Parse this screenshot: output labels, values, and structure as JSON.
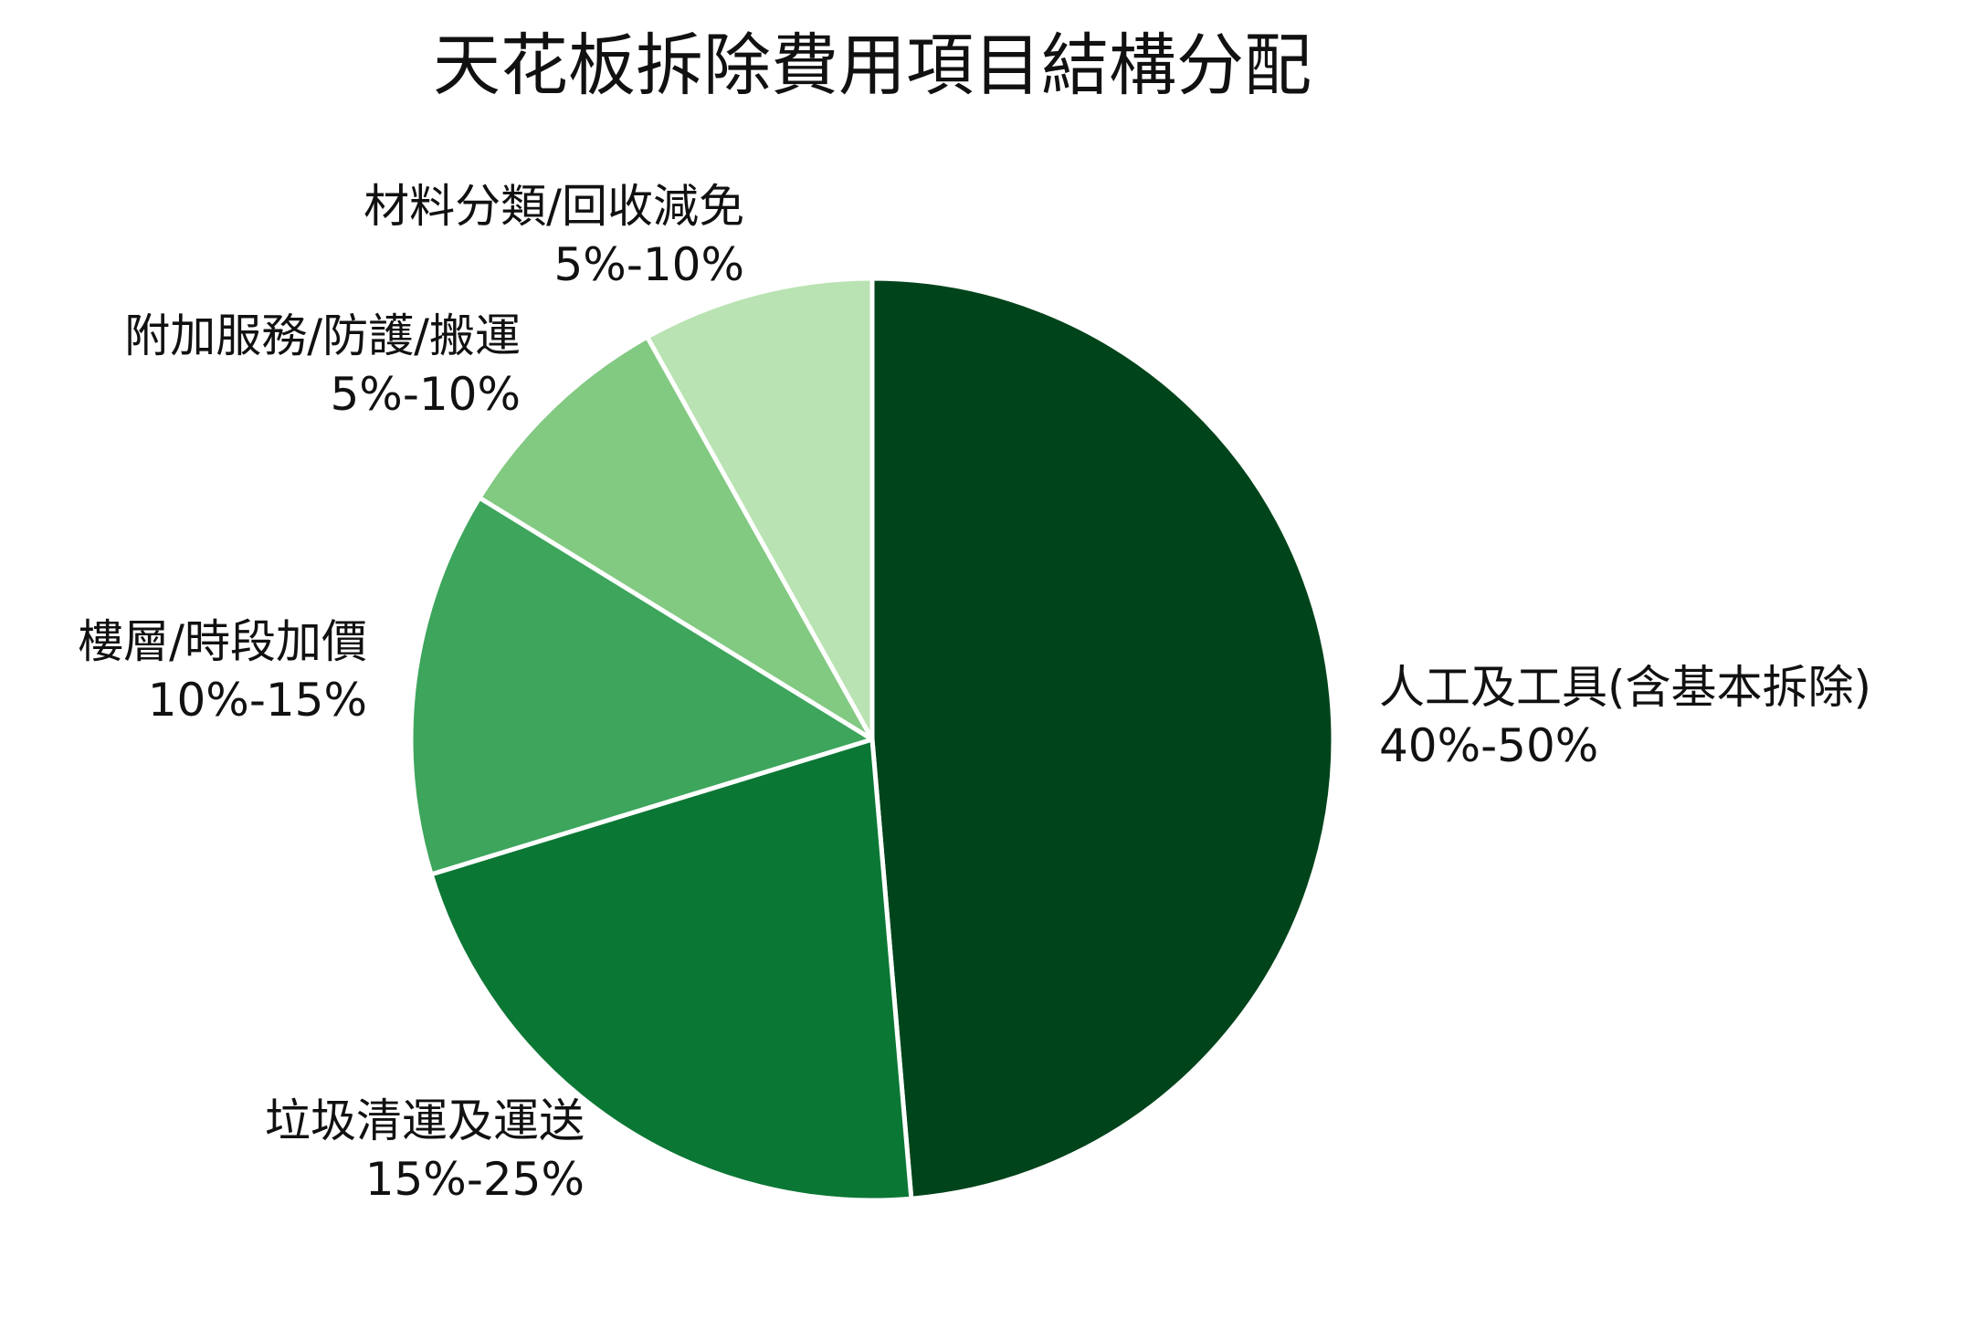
{
  "chart_data": {
    "type": "pie",
    "title": "天花板拆除費用項目結構分配",
    "start_angle_deg": 0,
    "direction": "clockwise",
    "legend": "none",
    "slices": [
      {
        "name": "人工及工具(含基本拆除)",
        "range_label": "40%-50%",
        "value": 45,
        "color": "#00441b"
      },
      {
        "name": "垃圾清運及運送",
        "range_label": "15%-25%",
        "value": 20,
        "color": "#0b7734"
      },
      {
        "name": "樓層/時段加價",
        "range_label": "10%-15%",
        "value": 12.5,
        "color": "#3da55c"
      },
      {
        "name": "附加服務/防護/搬運",
        "range_label": "5%-10%",
        "value": 7.5,
        "color": "#82c982"
      },
      {
        "name": "材料分類/回收減免",
        "range_label": "5%-10%",
        "value": 7.5,
        "color": "#b9e3b2"
      }
    ]
  }
}
